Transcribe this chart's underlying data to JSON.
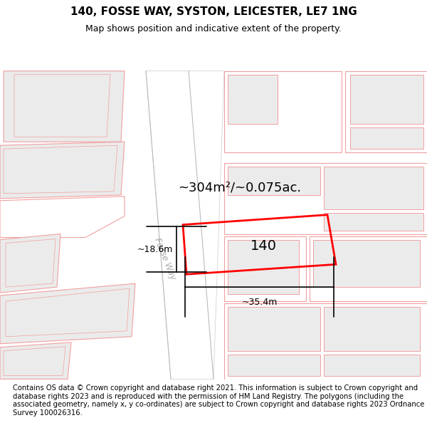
{
  "title": "140, FOSSE WAY, SYSTON, LEICESTER, LE7 1NG",
  "subtitle": "Map shows position and indicative extent of the property.",
  "footer": "Contains OS data © Crown copyright and database right 2021. This information is subject to Crown copyright and database rights 2023 and is reproduced with the permission of HM Land Registry. The polygons (including the associated geometry, namely x, y co-ordinates) are subject to Crown copyright and database rights 2023 Ordnance Survey 100026316.",
  "highlight_color": "#ff0000",
  "highlight_lw": 2.0,
  "building_fill": "#ebebeb",
  "building_edge": "#f0a0a0",
  "plot_edge": "#f0a0a0",
  "road_fill": "#ffffff",
  "map_bg": "#ffffff",
  "fosse_label_color": "#aaaaaa",
  "title_fontsize": 11,
  "subtitle_fontsize": 9,
  "footer_fontsize": 7.2,
  "dim_fontsize": 9,
  "area_fontsize": 13,
  "label_140_fontsize": 14
}
